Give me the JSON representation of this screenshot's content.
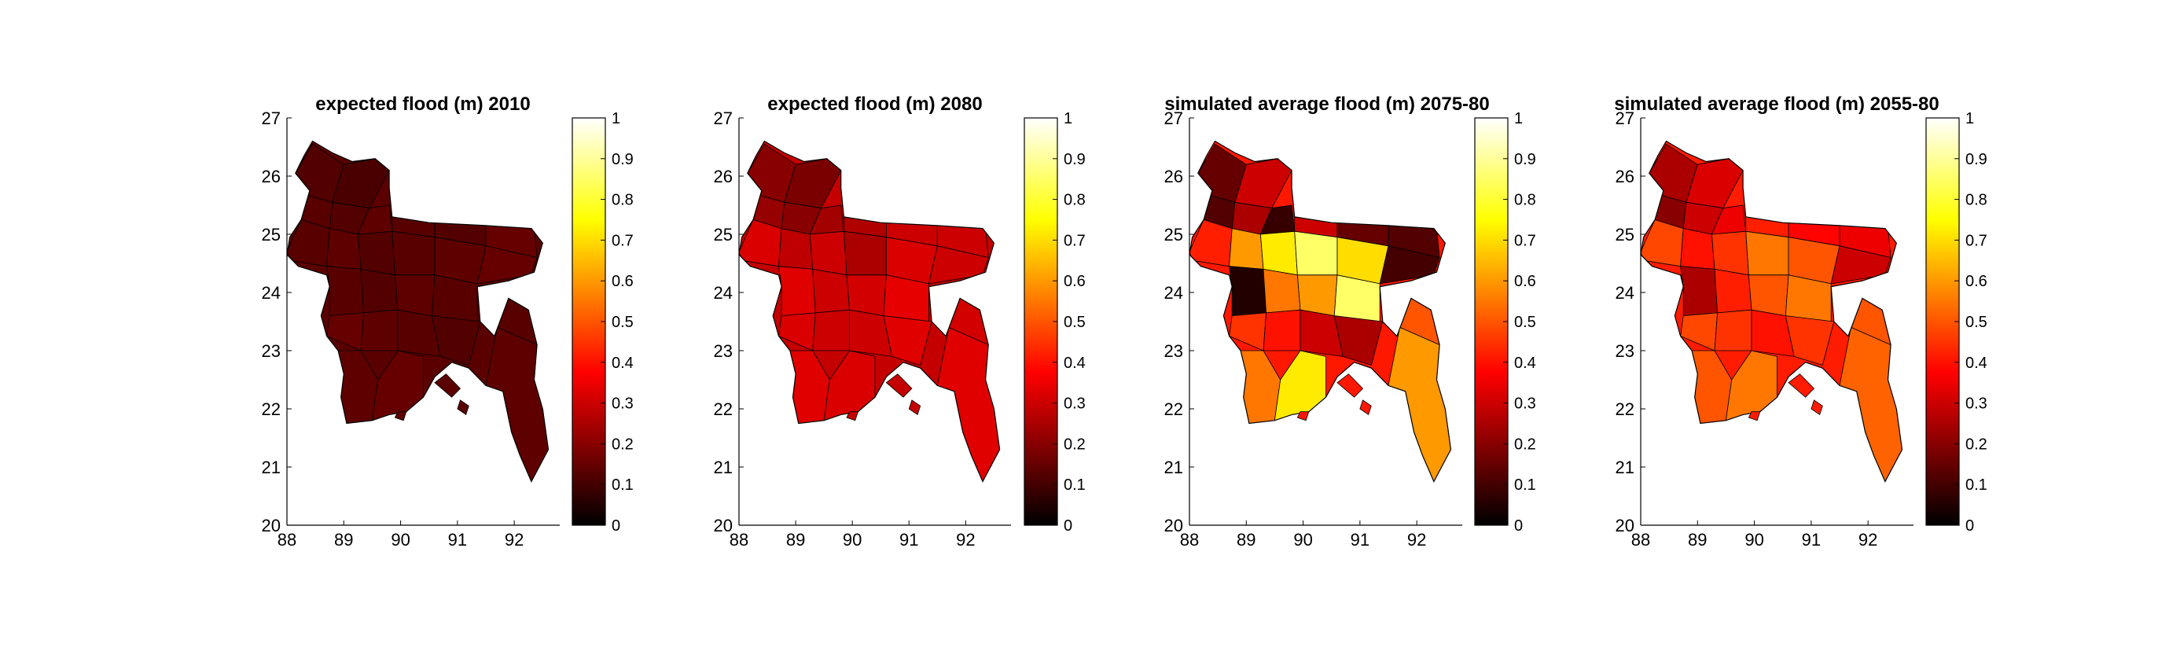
{
  "panels": [
    {
      "title": "expected flood (m) 2010"
    },
    {
      "title": "expected flood (m) 2080"
    },
    {
      "title": "simulated average flood (m) 2075-80"
    },
    {
      "title": "simulated average flood (m) 2055-80"
    }
  ],
  "chart_data": [
    {
      "type": "choropleth",
      "title": "expected flood (m) 2010",
      "xlim": [
        88,
        92.8
      ],
      "ylim": [
        20,
        27
      ],
      "xticks": [
        "88",
        "89",
        "90",
        "91",
        "92"
      ],
      "yticks": [
        "20",
        "21",
        "22",
        "23",
        "24",
        "25",
        "26",
        "27"
      ],
      "colorbar": {
        "colormap": "hot",
        "range": [
          0,
          1
        ],
        "ticks": [
          "0",
          "0.1",
          "0.2",
          "0.3",
          "0.4",
          "0.5",
          "0.6",
          "0.7",
          "0.8",
          "0.9",
          "1"
        ]
      },
      "district_values": [
        0.12,
        0.11,
        0.13,
        0.12,
        0.14,
        0.13,
        0.12,
        0.15,
        0.13,
        0.14,
        0.12,
        0.13,
        0.14,
        0.15,
        0.13,
        0.12,
        0.14,
        0.13,
        0.15,
        0.14,
        0.13,
        0.12,
        0.14,
        0.15,
        0.13,
        0.14
      ]
    },
    {
      "type": "choropleth",
      "title": "expected flood (m) 2080",
      "xlim": [
        88,
        92.8
      ],
      "ylim": [
        20,
        27
      ],
      "xticks": [
        "88",
        "89",
        "90",
        "91",
        "92"
      ],
      "yticks": [
        "20",
        "21",
        "22",
        "23",
        "24",
        "25",
        "26",
        "27"
      ],
      "colorbar": {
        "colormap": "hot",
        "range": [
          0,
          1
        ],
        "ticks": [
          "0",
          "0.1",
          "0.2",
          "0.3",
          "0.4",
          "0.5",
          "0.6",
          "0.7",
          "0.8",
          "0.9",
          "1"
        ]
      },
      "district_values": [
        0.2,
        0.18,
        0.22,
        0.2,
        0.24,
        0.26,
        0.3,
        0.3,
        0.32,
        0.28,
        0.3,
        0.25,
        0.32,
        0.3,
        0.33,
        0.3,
        0.31,
        0.34,
        0.32,
        0.3,
        0.3,
        0.33,
        0.33,
        0.32,
        0.31,
        0.33
      ]
    },
    {
      "type": "choropleth",
      "title": "simulated average flood (m) 2075-80",
      "xlim": [
        88,
        92.8
      ],
      "ylim": [
        20,
        27
      ],
      "xticks": [
        "88",
        "89",
        "90",
        "91",
        "92"
      ],
      "yticks": [
        "20",
        "21",
        "22",
        "23",
        "24",
        "25",
        "26",
        "27"
      ],
      "colorbar": {
        "colormap": "hot",
        "range": [
          0,
          1
        ],
        "ticks": [
          "0",
          "0.1",
          "0.2",
          "0.3",
          "0.4",
          "0.5",
          "0.6",
          "0.7",
          "0.8",
          "0.9",
          "1"
        ]
      },
      "district_values": [
        0.15,
        0.3,
        0.12,
        0.25,
        0.08,
        0.3,
        0.15,
        0.12,
        0.42,
        0.6,
        0.72,
        0.85,
        0.7,
        0.1,
        0.05,
        0.55,
        0.6,
        0.85,
        0.45,
        0.4,
        0.3,
        0.25,
        0.55,
        0.72,
        0.5,
        0.6
      ]
    },
    {
      "type": "choropleth",
      "title": "simulated average flood (m) 2055-80",
      "xlim": [
        88,
        92.8
      ],
      "ylim": [
        20,
        27
      ],
      "xticks": [
        "88",
        "89",
        "90",
        "91",
        "92"
      ],
      "yticks": [
        "20",
        "21",
        "22",
        "23",
        "24",
        "25",
        "26",
        "27"
      ],
      "colorbar": {
        "colormap": "hot",
        "range": [
          0,
          1
        ],
        "ticks": [
          "0",
          "0.1",
          "0.2",
          "0.3",
          "0.4",
          "0.5",
          "0.6",
          "0.7",
          "0.8",
          "0.9",
          "1"
        ]
      },
      "district_values": [
        0.25,
        0.32,
        0.2,
        0.3,
        0.35,
        0.42,
        0.38,
        0.35,
        0.48,
        0.4,
        0.45,
        0.55,
        0.5,
        0.3,
        0.25,
        0.42,
        0.5,
        0.55,
        0.48,
        0.45,
        0.4,
        0.45,
        0.5,
        0.55,
        0.5,
        0.52
      ]
    }
  ]
}
